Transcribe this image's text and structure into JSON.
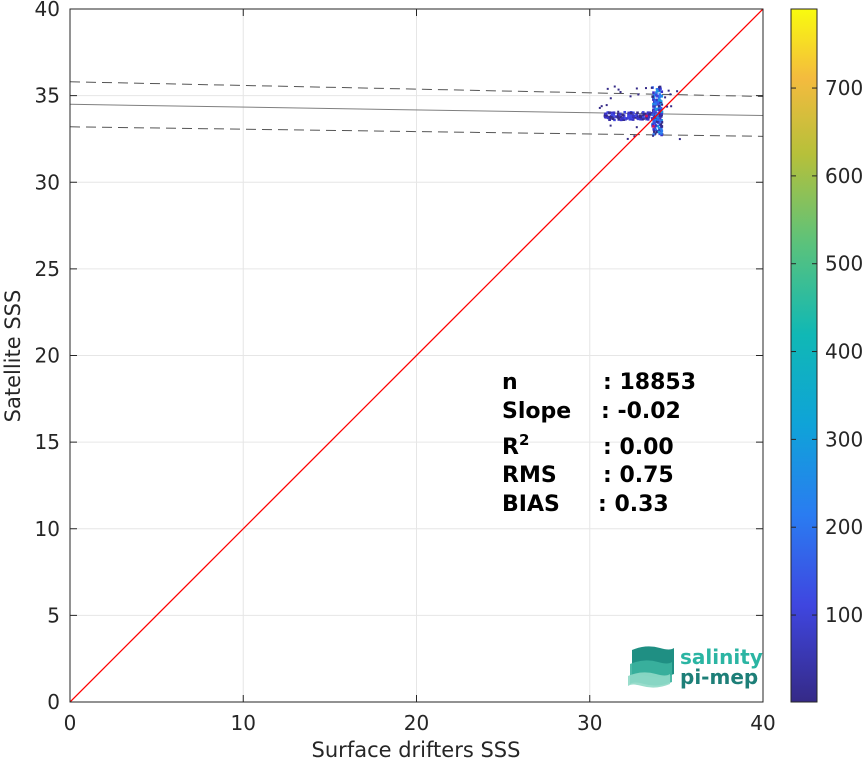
{
  "chart_data": {
    "type": "heatmap",
    "title": "",
    "xlabel": "Surface drifters SSS",
    "ylabel": "Satellite SSS",
    "xlim": [
      0,
      40
    ],
    "ylim": [
      0,
      40
    ],
    "xticks": [
      "0",
      "10",
      "20",
      "30",
      "40"
    ],
    "yticks": [
      "0",
      "5",
      "10",
      "15",
      "20",
      "25",
      "30",
      "35",
      "40"
    ],
    "grid": true,
    "identity_line": {
      "color": "#ff0000",
      "from": [
        0,
        0
      ],
      "to": [
        40,
        40
      ]
    },
    "regression_line": {
      "color": "#7f7f7f",
      "x": [
        0,
        40
      ],
      "y": [
        34.5,
        33.85
      ]
    },
    "confidence_bounds": {
      "color": "#555555",
      "upper": {
        "x": [
          0,
          40
        ],
        "y": [
          35.8,
          34.95
        ]
      },
      "lower": {
        "x": [
          0,
          40
        ],
        "y": [
          33.2,
          32.65
        ]
      }
    },
    "density_cluster": {
      "x_range": [
        30.5,
        35.2
      ],
      "y_range": [
        32.5,
        35.7
      ],
      "peak": [
        33.8,
        34.0
      ]
    },
    "colorbar": {
      "range": [
        1,
        790
      ],
      "ticks": [
        "100",
        "200",
        "300",
        "400",
        "500",
        "600",
        "700"
      ],
      "colormap": "parula"
    },
    "stats": [
      {
        "label": "n",
        "value": ": 18853"
      },
      {
        "label": "Slope",
        "value": ": -0.02"
      },
      {
        "label": "R2",
        "value": ": 0.00"
      },
      {
        "label": "RMS",
        "value": ": 0.75"
      },
      {
        "label": "BIAS",
        "value": ": 0.33"
      }
    ]
  },
  "logo": {
    "line1": "salinity",
    "line2": "pi-mep",
    "color_primary": "#2bb5a3",
    "color_secondary": "#1d7f78"
  }
}
